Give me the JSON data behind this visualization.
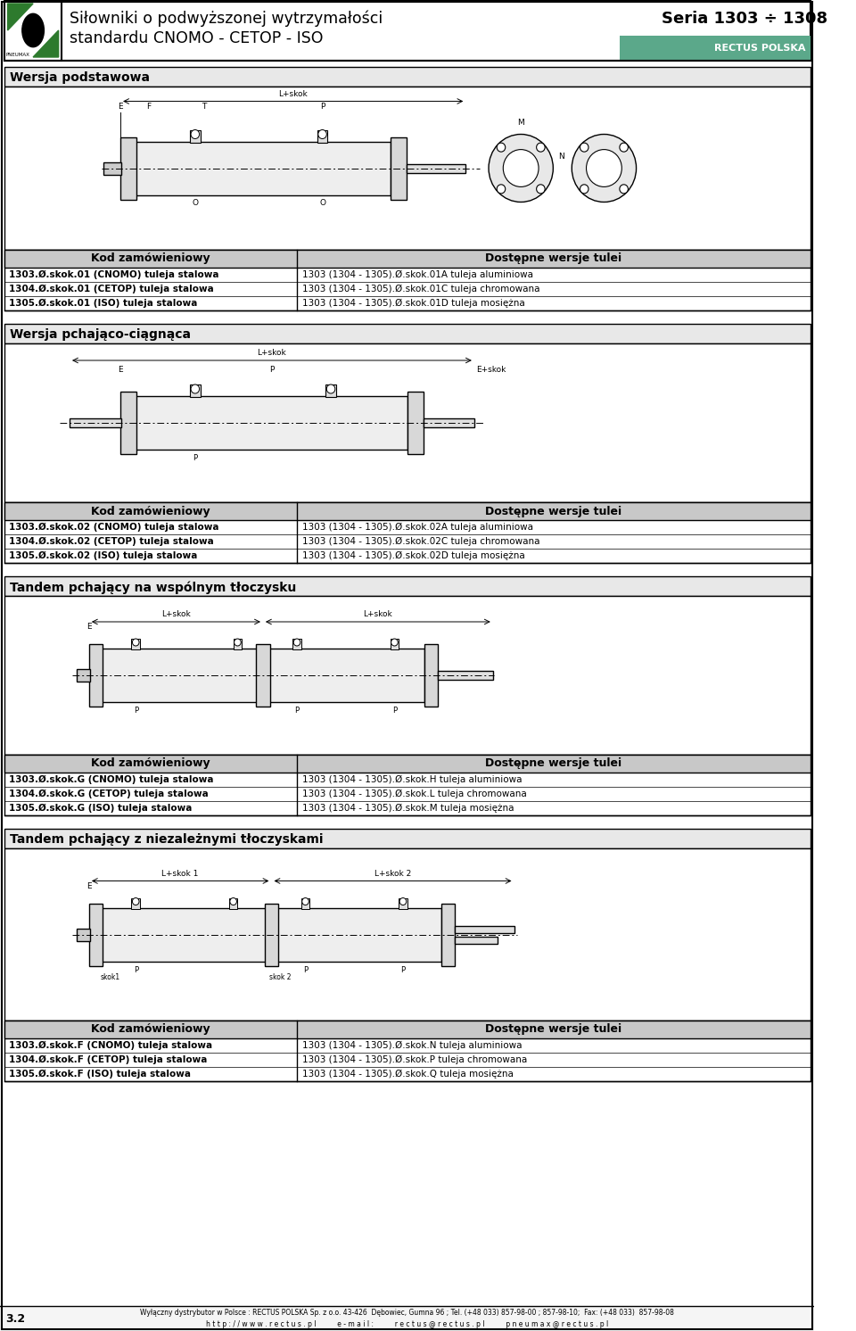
{
  "page_bg": "#ffffff",
  "header_bg": "#ffffff",
  "header_title_line1": "Siłowniki o podwyższonej wytrzymałości",
  "header_title_line2": "standardu CNOMO - CETOP - ISO",
  "header_series": "Seria 1303 ÷ 1308",
  "header_rectus": "RECTUS POLSKA",
  "header_rectus_bg": "#5ba88a",
  "section1_title": "Wersja podstawowa",
  "section1_title_bg": "#e8e8e8",
  "section2_title": "Wersja pchająco-ciągnąca",
  "section2_title_bg": "#e8e8e8",
  "section3_title": "Tandem pchający na wspólnym tłoczysku",
  "section3_title_bg": "#e8e8e8",
  "section4_title": "Tandem pchający z niezależnymi tłoczyskami",
  "section4_title_bg": "#e8e8e8",
  "table_header_bg": "#c8c8c8",
  "table_header_text": "#000000",
  "table_col1_header": "Kod zamówieniowy",
  "table_col2_header": "Dostępne wersje tulei",
  "section1_col1_lines": [
    "1303.Ø.skok.01 (CNOMO) tuleja stalowa",
    "1304.Ø.skok.01 (CETOP) tuleja stalowa",
    "1305.Ø.skok.01 (ISO) tuleja stalowa"
  ],
  "section1_col2_lines": [
    "1303 (1304 - 1305).Ø.skok.01A tuleja aluminiowa",
    "1303 (1304 - 1305).Ø.skok.01C tuleja chromowana",
    "1303 (1304 - 1305).Ø.skok.01D tuleja mosiężna"
  ],
  "section2_col1_lines": [
    "1303.Ø.skok.02 (CNOMO) tuleja stalowa",
    "1304.Ø.skok.02 (CETOP) tuleja stalowa",
    "1305.Ø.skok.02 (ISO) tuleja stalowa"
  ],
  "section2_col2_lines": [
    "1303 (1304 - 1305).Ø.skok.02A tuleja aluminiowa",
    "1303 (1304 - 1305).Ø.skok.02C tuleja chromowana",
    "1303 (1304 - 1305).Ø.skok.02D tuleja mosiężna"
  ],
  "section3_col1_lines": [
    "1303.Ø.skok.G (CNOMO) tuleja stalowa",
    "1304.Ø.skok.G (CETOP) tuleja stalowa",
    "1305.Ø.skok.G (ISO) tuleja stalowa"
  ],
  "section3_col2_lines": [
    "1303 (1304 - 1305).Ø.skok.H tuleja aluminiowa",
    "1303 (1304 - 1305).Ø.skok.L tuleja chromowana",
    "1303 (1304 - 1305).Ø.skok.M tuleja mosiężna"
  ],
  "section4_col1_lines": [
    "1303.Ø.skok.F (CNOMO) tuleja stalowa",
    "1304.Ø.skok.F (CETOP) tuleja stalowa",
    "1305.Ø.skok.F (ISO) tuleja stalowa"
  ],
  "section4_col2_lines": [
    "1303 (1304 - 1305).Ø.skok.N tuleja aluminiowa",
    "1303 (1304 - 1305).Ø.skok.P tuleja chromowana",
    "1303 (1304 - 1305).Ø.skok.Q tuleja mosiężna"
  ],
  "footer_text1": "3.2",
  "footer_text2": "Wyłączny dystrybutor w Polsce : RECTUS POLSKA Sp. z o.o. 43-426  Dębowiec, Gumna 96 ; Tel. (+48 033) 857-98-00 ; 857-98-10;  Fax: (+48 033)  857-98-08",
  "footer_text3": "h t t p : / / w w w . r e c t u s . p l          e - m a i l :          r e c t u s @ r e c t u s . p l          p n e u m a x @ r e c t u s . p l",
  "line_color": "#000000",
  "label_color": "#000000"
}
